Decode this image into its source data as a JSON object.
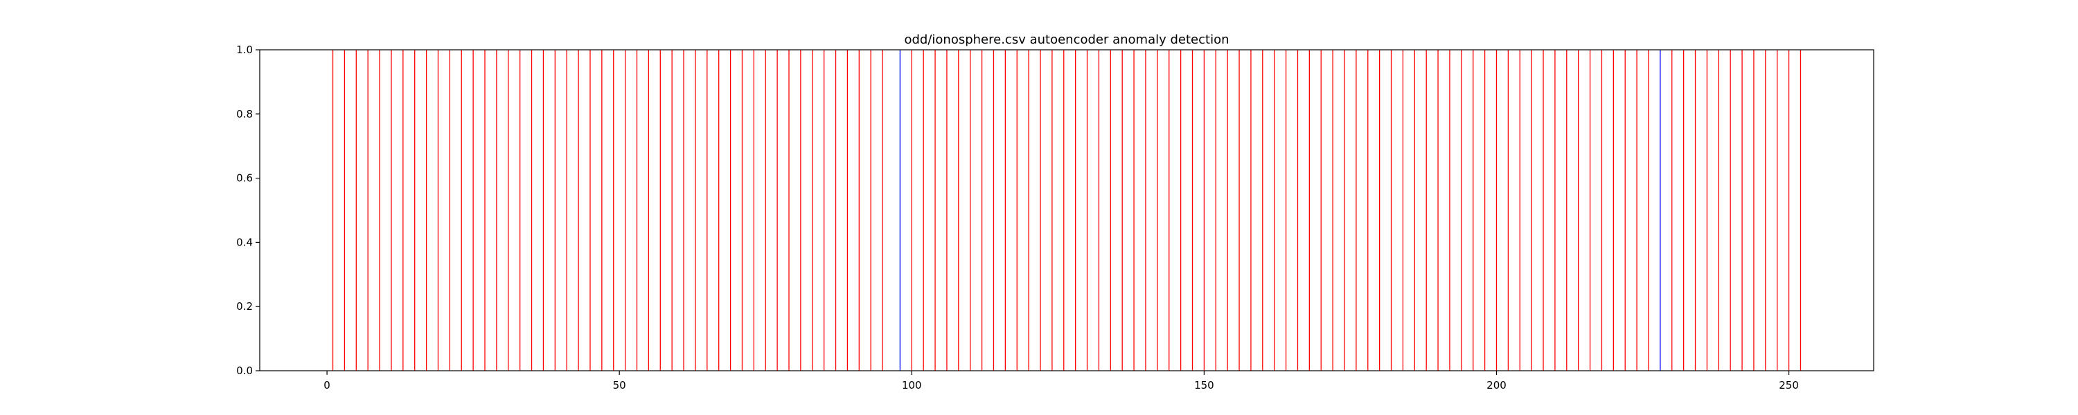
{
  "chart_data": {
    "type": "bar",
    "title": "odd/ionosphere.csv autoencoder anomaly detection",
    "xlabel": "",
    "ylabel": "",
    "xlim": [
      -11.5,
      264.5
    ],
    "ylim": [
      0.0,
      1.0
    ],
    "grid": false,
    "legend": "none",
    "x_ticks": [
      0,
      50,
      100,
      150,
      200,
      250
    ],
    "y_ticks": [
      0.0,
      0.2,
      0.4,
      0.6,
      0.8,
      1.0
    ],
    "x_tick_labels": [
      "0",
      "50",
      "100",
      "150",
      "200",
      "250"
    ],
    "y_tick_labels": [
      "0.0",
      "0.2",
      "0.4",
      "0.6",
      "0.8",
      "1.0"
    ],
    "series": [
      {
        "color": "#ff0000",
        "x": [
          1,
          3,
          5,
          7,
          9,
          11,
          13,
          15,
          17,
          19,
          21,
          23,
          25,
          27,
          29,
          31,
          33,
          35,
          37,
          39,
          41,
          43,
          45,
          47,
          49,
          51,
          53,
          55,
          57,
          59,
          61,
          63,
          65,
          67,
          69,
          71,
          73,
          75,
          77,
          79,
          81,
          83,
          85,
          87,
          89,
          91,
          93,
          95,
          100,
          102,
          104,
          106,
          108,
          110,
          112,
          114,
          116,
          118,
          120,
          122,
          124,
          126,
          128,
          130,
          132,
          134,
          136,
          138,
          140,
          142,
          144,
          146,
          148,
          150,
          152,
          154,
          156,
          158,
          160,
          162,
          164,
          166,
          168,
          170,
          172,
          174,
          176,
          178,
          180,
          182,
          184,
          186,
          188,
          190,
          192,
          194,
          196,
          198,
          200,
          202,
          204,
          206,
          208,
          210,
          212,
          214,
          216,
          218,
          220,
          222,
          224,
          226,
          230,
          232,
          234,
          236,
          238,
          240,
          242,
          244,
          246,
          248,
          250,
          252
        ],
        "value": 1.0
      },
      {
        "color": "#0000ff",
        "x": [
          98,
          228
        ],
        "value": 1.0
      }
    ]
  }
}
